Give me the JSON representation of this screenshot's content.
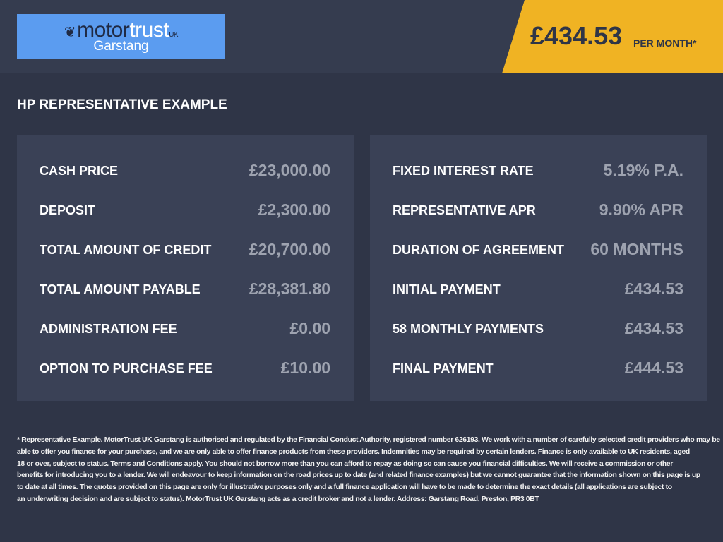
{
  "logo": {
    "brand_dark": "motor",
    "brand_light": "trust",
    "suffix": "UK",
    "branch": "Garstang"
  },
  "header": {
    "price": "£434.53",
    "per_month": "PER MONTH*"
  },
  "title": "HP REPRESENTATIVE EXAMPLE",
  "colors": {
    "accent": "#f0b323",
    "logo_bg": "#5b9cf0",
    "panel": "#3a4156",
    "background": "#2f3547"
  },
  "left": [
    {
      "label": "CASH PRICE",
      "value": "£23,000.00"
    },
    {
      "label": "DEPOSIT",
      "value": "£2,300.00"
    },
    {
      "label": "TOTAL AMOUNT OF CREDIT",
      "value": "£20,700.00"
    },
    {
      "label": "TOTAL AMOUNT PAYABLE",
      "value": "£28,381.80"
    },
    {
      "label": "ADMINISTRATION FEE",
      "value": "£0.00"
    },
    {
      "label": "OPTION TO PURCHASE FEE",
      "value": "£10.00"
    }
  ],
  "right": [
    {
      "label": "FIXED INTEREST RATE",
      "value": "5.19% P.A."
    },
    {
      "label": "REPRESENTATIVE APR",
      "value": "9.90% APR"
    },
    {
      "label": "DURATION OF AGREEMENT",
      "value": "60 MONTHS"
    },
    {
      "label": "INITIAL PAYMENT",
      "value": "£434.53"
    },
    {
      "label": "58 MONTHLY PAYMENTS",
      "value": "£434.53"
    },
    {
      "label": "FINAL PAYMENT",
      "value": "£444.53"
    }
  ],
  "footer": [
    "* Representative Example. MotorTrust UK Garstang is authorised and regulated by the Financial Conduct Authority, registered number 626193. We work with a number of carefully selected credit providers who may be",
    "able to offer you finance for your purchase, and we are only able to offer finance products from these providers. Indemnities may be required by certain lenders. Finance is only available to UK residents, aged",
    "18 or over, subject to status. Terms and Conditions apply. You should not borrow more than you can afford to repay as doing so can cause you financial difficulties. We will receive a commission or other",
    "benefits for introducing you to a lender. We will endeavour to keep information on the road prices up to date (and related finance examples) but we cannot guarantee that the information shown on this page is up",
    "to date at all times. The quotes provided on this page are only for illustrative purposes only and a full finance application will have to be made to determine the exact details (all applications are subject to",
    "an underwriting decision and are subject to status). MotorTrust UK Garstang acts as a credit broker and not a lender. Address: Garstang Road, Preston, PR3 0BT"
  ]
}
